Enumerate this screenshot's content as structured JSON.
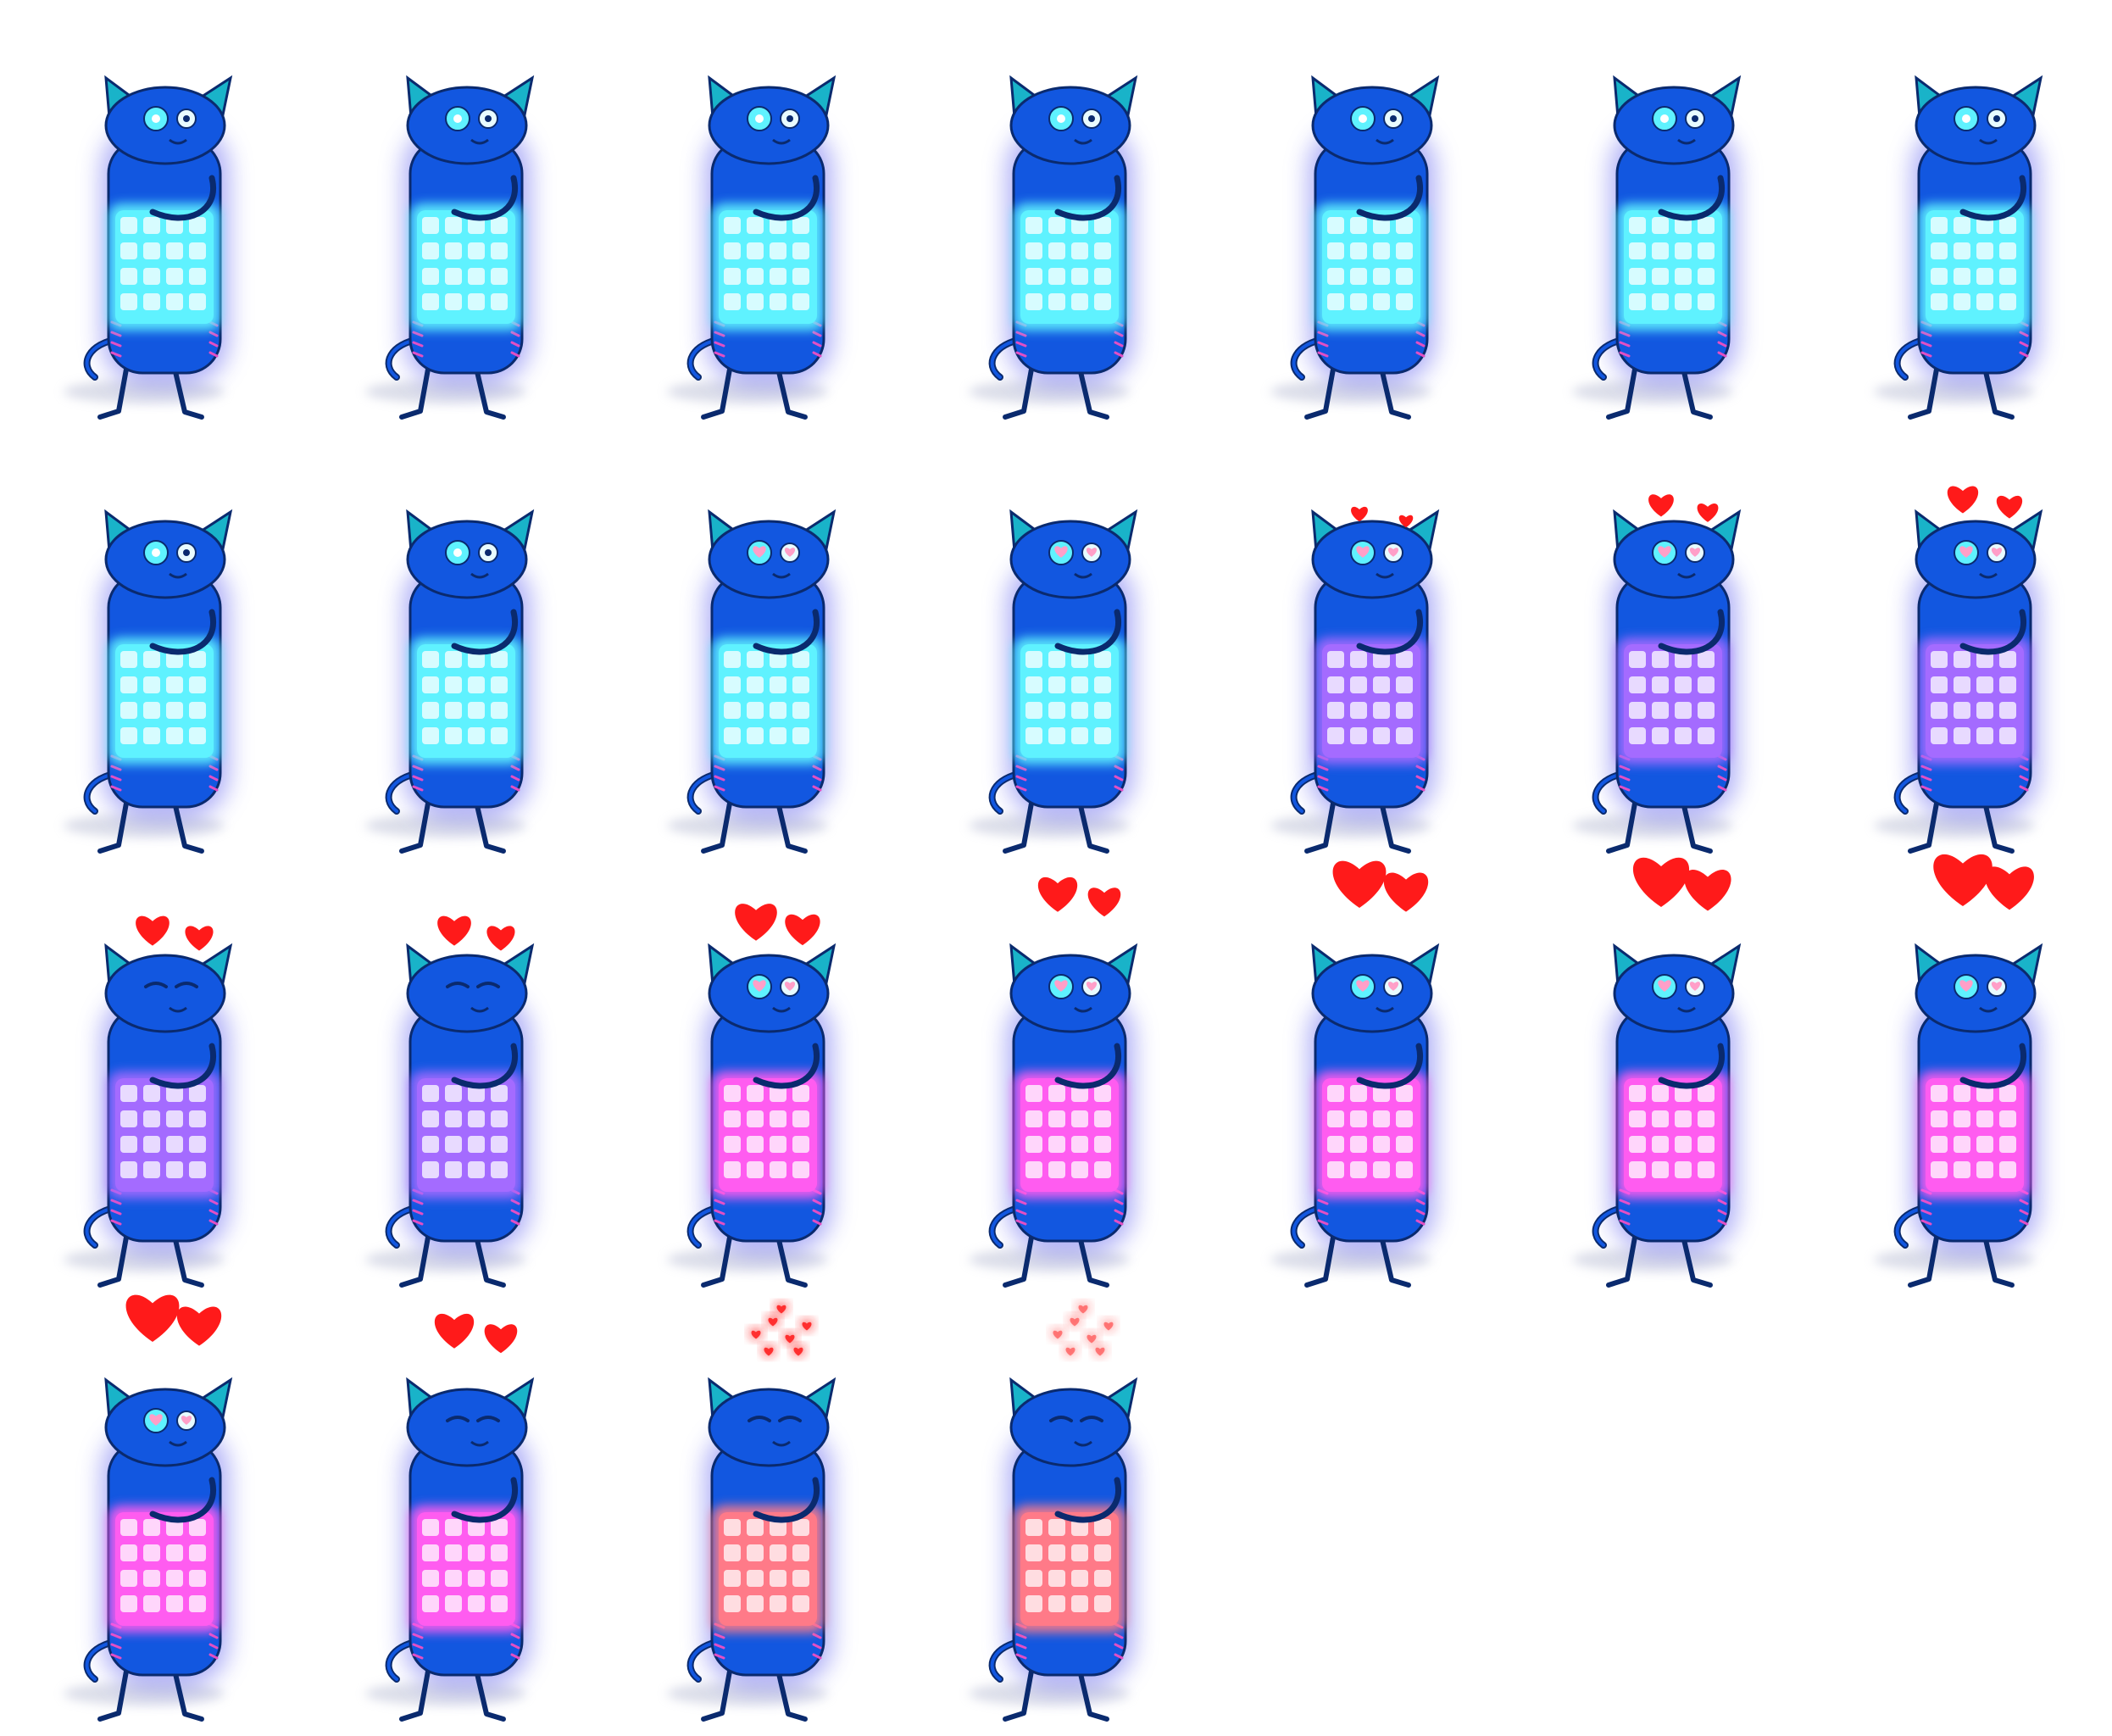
{
  "sheet": {
    "columns": 7,
    "rows": 4,
    "frame_count": 25
  },
  "colors": {
    "background": "#ffffff",
    "cat_body": "#1257e0",
    "cat_outline": "#0a2a6e",
    "cat_glow": "#6b6cf0",
    "ear_inner": "#19b3c9",
    "stripes": "#e24fc4",
    "screen_cyan": "#5ff2ff",
    "screen_violet": "#a46bff",
    "screen_magenta": "#ff5cf0",
    "screen_coral": "#ff7a88",
    "eye_white": "#e8fbff",
    "heart_red": "#ff1a1a",
    "heart_pink": "#ff9fc8",
    "shadow": "#bfc3d8"
  },
  "frames": [
    {
      "screen": "screen_cyan",
      "eyes": "open",
      "hearts": "none",
      "heart_scale": 0
    },
    {
      "screen": "screen_cyan",
      "eyes": "open",
      "hearts": "none",
      "heart_scale": 0
    },
    {
      "screen": "screen_cyan",
      "eyes": "open",
      "hearts": "none",
      "heart_scale": 0
    },
    {
      "screen": "screen_cyan",
      "eyes": "open",
      "hearts": "none",
      "heart_scale": 0
    },
    {
      "screen": "screen_cyan",
      "eyes": "open",
      "hearts": "none",
      "heart_scale": 0
    },
    {
      "screen": "screen_cyan",
      "eyes": "open",
      "hearts": "none",
      "heart_scale": 0
    },
    {
      "screen": "screen_cyan",
      "eyes": "open",
      "hearts": "none",
      "heart_scale": 0
    },
    {
      "screen": "screen_cyan",
      "eyes": "open",
      "hearts": "none",
      "heart_scale": 0
    },
    {
      "screen": "screen_cyan",
      "eyes": "open",
      "hearts": "none",
      "heart_scale": 0
    },
    {
      "screen": "screen_cyan",
      "eyes": "heart",
      "hearts": "none",
      "heart_scale": 0
    },
    {
      "screen": "screen_cyan",
      "eyes": "heart",
      "hearts": "none",
      "heart_scale": 0
    },
    {
      "screen": "screen_violet",
      "eyes": "heart",
      "hearts": "pop",
      "heart_scale": 0.3
    },
    {
      "screen": "screen_violet",
      "eyes": "heart",
      "hearts": "pop",
      "heart_scale": 0.45
    },
    {
      "screen": "screen_violet",
      "eyes": "heart",
      "hearts": "pop",
      "heart_scale": 0.55
    },
    {
      "screen": "screen_violet",
      "eyes": "closed",
      "hearts": "pop",
      "heart_scale": 0.6
    },
    {
      "screen": "screen_violet",
      "eyes": "closed",
      "hearts": "pop",
      "heart_scale": 0.6
    },
    {
      "screen": "screen_magenta",
      "eyes": "heart",
      "hearts": "pop",
      "heart_scale": 0.75
    },
    {
      "screen": "screen_magenta",
      "eyes": "heart",
      "hearts": "rise",
      "heart_scale": 0.7
    },
    {
      "screen": "screen_magenta",
      "eyes": "heart",
      "hearts": "rise",
      "heart_scale": 0.95
    },
    {
      "screen": "screen_magenta",
      "eyes": "heart",
      "hearts": "rise",
      "heart_scale": 1.0
    },
    {
      "screen": "screen_magenta",
      "eyes": "heart",
      "hearts": "rise",
      "heart_scale": 1.05
    },
    {
      "screen": "screen_magenta",
      "eyes": "heart",
      "hearts": "rise",
      "heart_scale": 0.95
    },
    {
      "screen": "screen_magenta",
      "eyes": "closed",
      "hearts": "burst",
      "heart_scale": 0.7
    },
    {
      "screen": "screen_coral",
      "eyes": "closed",
      "hearts": "sparkle",
      "heart_scale": 0.5
    },
    {
      "screen": "screen_coral",
      "eyes": "closed",
      "hearts": "fade",
      "heart_scale": 0.45
    }
  ]
}
